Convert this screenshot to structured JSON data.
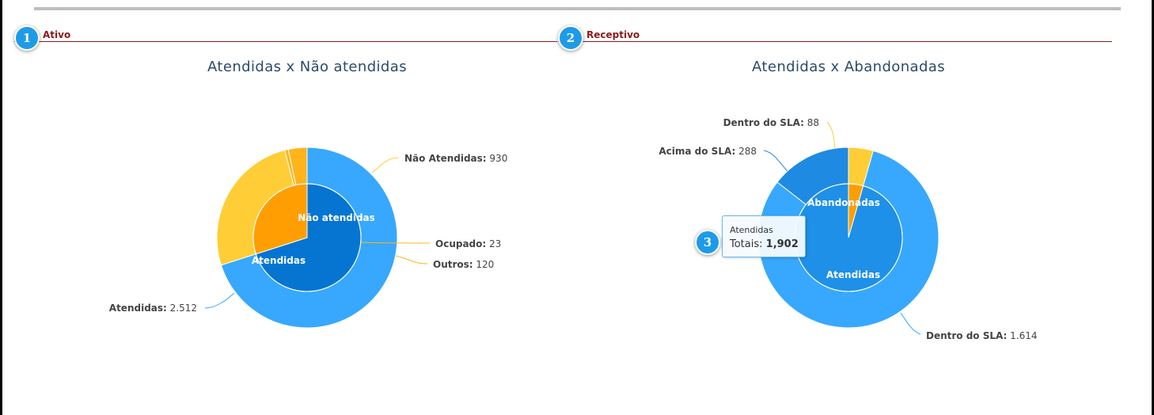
{
  "sections": [
    {
      "badge": "1",
      "label": "Ativo"
    },
    {
      "badge": "2",
      "label": "Receptivo"
    }
  ],
  "tooltip": {
    "badge": "3",
    "title": "Atendidas",
    "key": "Totais:",
    "value": "1,902"
  },
  "chart_data": [
    {
      "type": "pie",
      "title": "Atendidas x Não atendidas",
      "inner": [
        {
          "name": "Atendidas",
          "value": 2512,
          "color": "#0575d1"
        },
        {
          "name": "Não atendidas",
          "value": 1073,
          "color": "#ff9e03"
        }
      ],
      "outer": [
        {
          "name": "Atendidas",
          "value": 2512,
          "display": "2.512",
          "color": "#37a8fd"
        },
        {
          "name": "Não Atendidas",
          "value": 930,
          "display": "930",
          "color": "#ffcd36"
        },
        {
          "name": "Ocupado",
          "value": 23,
          "display": "23",
          "color": "#ffb41c"
        },
        {
          "name": "Outros",
          "value": 120,
          "display": "120",
          "color": "#ffb41c"
        }
      ]
    },
    {
      "type": "pie",
      "title": "Atendidas x Abandonadas",
      "inner": [
        {
          "name": "Abandonadas",
          "value": 88,
          "color": "#ff9e03"
        },
        {
          "name": "Atendidas",
          "value": 1902,
          "color": "#1e90e8"
        }
      ],
      "outer": [
        {
          "name": "Dentro do SLA",
          "value": 88,
          "display": "88",
          "color": "#ffcd36"
        },
        {
          "name": "Dentro do SLA",
          "value": 1614,
          "display": "1.614",
          "color": "#37a8fd"
        },
        {
          "name": "Acima do SLA",
          "value": 288,
          "display": "288",
          "color": "#1f8ae2"
        }
      ]
    }
  ]
}
